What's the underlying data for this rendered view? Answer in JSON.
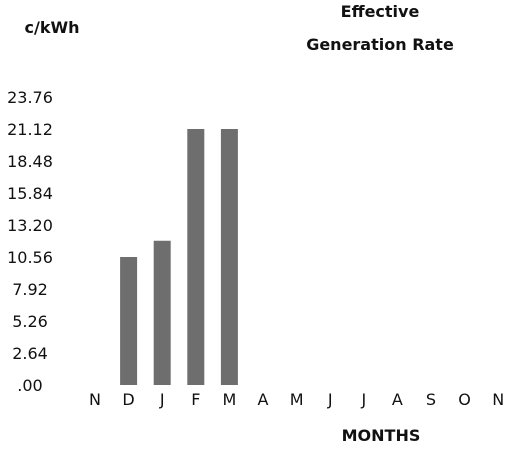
{
  "chart_data": {
    "type": "bar",
    "title": [
      "Effective",
      "Generation Rate"
    ],
    "ylabel": "c/kWh",
    "xlabel": "MONTHS",
    "categories": [
      "N",
      "D",
      "J",
      "F",
      "M",
      "A",
      "M",
      "J",
      "J",
      "A",
      "S",
      "O",
      "N"
    ],
    "values": [
      null,
      10.56,
      11.9,
      21.12,
      21.12,
      null,
      null,
      null,
      null,
      null,
      null,
      null,
      null
    ],
    "yticks": [
      ".00",
      "2.64",
      "5.26",
      "7.92",
      "10.56",
      "13.20",
      "15.84",
      "18.48",
      "21.12",
      "23.76"
    ],
    "ylim": [
      0,
      23.76
    ],
    "grid": false,
    "colors": {
      "bar": "#6e6e6e",
      "text": "#111111"
    }
  }
}
